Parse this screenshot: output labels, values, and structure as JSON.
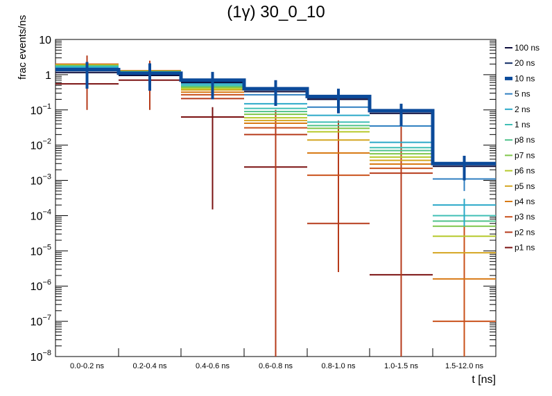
{
  "chart_data": {
    "type": "line",
    "title": "(1γ) 30_0_10",
    "xlabel": "t [ns]",
    "ylabel": "frac events/ns",
    "yscale": "log",
    "ylim": [
      1e-08,
      10
    ],
    "y_ticks": [
      {
        "base": "10",
        "exp": "−8",
        "value": 1e-08
      },
      {
        "base": "10",
        "exp": "−7",
        "value": 1e-07
      },
      {
        "base": "10",
        "exp": "−6",
        "value": 1e-06
      },
      {
        "base": "10",
        "exp": "−5",
        "value": 1e-05
      },
      {
        "base": "10",
        "exp": "−4",
        "value": 0.0001
      },
      {
        "base": "10",
        "exp": "−3",
        "value": 0.001
      },
      {
        "base": "10",
        "exp": "−2",
        "value": 0.01
      },
      {
        "base": "10",
        "exp": "−1",
        "value": 0.1
      },
      {
        "base": "1",
        "exp": "",
        "value": 1
      },
      {
        "base": "10",
        "exp": "",
        "value": 10
      }
    ],
    "categories": [
      "0.0-0.2 ns",
      "0.2-0.4 ns",
      "0.4-0.6 ns",
      "0.6-0.8 ns",
      "0.8-1.0 ns",
      "1.0-1.5 ns",
      "1.5-12.0 ns"
    ],
    "grid": false,
    "legend_position": "right",
    "series": [
      {
        "name": "100 ns",
        "color": "#0b0b3b",
        "width": 2,
        "values": [
          1.15,
          0.95,
          0.6,
          0.33,
          0.2,
          0.08,
          0.0025
        ],
        "err": [
          null,
          null,
          null,
          null,
          null,
          null,
          null
        ]
      },
      {
        "name": "20 ns",
        "color": "#0d2a63",
        "width": 2,
        "values": [
          1.3,
          1.05,
          0.65,
          0.37,
          0.22,
          0.09,
          0.0028
        ],
        "err": [
          null,
          null,
          null,
          null,
          null,
          null,
          null
        ]
      },
      {
        "name": "10 ns",
        "color": "#0b4a9a",
        "width": 5,
        "values": [
          1.4,
          1.1,
          0.7,
          0.4,
          0.24,
          0.095,
          0.003
        ],
        "err": [
          [
            0.4,
            2.3
          ],
          [
            0.35,
            2.1
          ],
          [
            0.2,
            1.2
          ],
          [
            0.13,
            0.7
          ],
          [
            0.08,
            0.4
          ],
          [
            0.035,
            0.15
          ],
          [
            0.001,
            0.005
          ]
        ]
      },
      {
        "name": "5 ns",
        "color": "#2f7fc1",
        "width": 2,
        "values": [
          1.5,
          1.1,
          0.6,
          0.27,
          0.12,
          0.035,
          0.0011
        ],
        "err": [
          null,
          null,
          null,
          null,
          null,
          null,
          [
            0.0005,
            0.0016
          ]
        ]
      },
      {
        "name": "2 ns",
        "color": "#2aa8c8",
        "width": 2,
        "values": [
          1.6,
          1.15,
          0.55,
          0.15,
          0.07,
          0.012,
          0.0002
        ],
        "err": [
          null,
          null,
          null,
          null,
          null,
          null,
          [
            5e-05,
            0.0003
          ]
        ]
      },
      {
        "name": "1 ns",
        "color": "#3fbfb5",
        "width": 2,
        "values": [
          1.7,
          1.2,
          0.5,
          0.11,
          0.045,
          0.0085,
          0.0001
        ],
        "err": [
          null,
          null,
          null,
          null,
          null,
          null,
          null
        ]
      },
      {
        "name": "p8 ns",
        "color": "#4fc28a",
        "width": 2,
        "values": [
          1.75,
          1.2,
          0.48,
          0.09,
          0.036,
          0.007,
          7e-05
        ],
        "err": [
          null,
          null,
          null,
          null,
          null,
          null,
          null
        ]
      },
      {
        "name": "p7 ns",
        "color": "#7fc64a",
        "width": 2,
        "values": [
          1.8,
          1.25,
          0.44,
          0.075,
          0.03,
          0.0057,
          5e-05
        ],
        "err": [
          null,
          null,
          null,
          null,
          null,
          null,
          null
        ]
      },
      {
        "name": "p6 ns",
        "color": "#b6c92a",
        "width": 2,
        "values": [
          1.85,
          1.25,
          0.4,
          0.06,
          0.024,
          0.0046,
          2.6e-05
        ],
        "err": [
          null,
          null,
          null,
          null,
          null,
          null,
          null
        ]
      },
      {
        "name": "p5 ns",
        "color": "#d4a520",
        "width": 2,
        "values": [
          1.9,
          1.25,
          0.37,
          0.05,
          0.014,
          0.0037,
          8.8e-06
        ],
        "err": [
          null,
          null,
          null,
          null,
          null,
          null,
          null
        ]
      },
      {
        "name": "p4 ns",
        "color": "#d87a14",
        "width": 2,
        "values": [
          1.95,
          1.3,
          0.32,
          0.042,
          0.006,
          0.0029,
          1.6e-06
        ],
        "err": [
          null,
          null,
          null,
          null,
          null,
          null,
          null
        ]
      },
      {
        "name": "p3 ns",
        "color": "#c9501a",
        "width": 2,
        "values": [
          2.0,
          1.3,
          0.27,
          0.031,
          0.0014,
          0.0022,
          1e-07
        ],
        "err": [
          null,
          null,
          null,
          null,
          null,
          null,
          [
            1e-08,
            0.0003
          ]
        ]
      },
      {
        "name": "p2 ns",
        "color": "#b63a1a",
        "width": 2,
        "values": [
          1.6,
          1.25,
          0.21,
          0.02,
          6e-05,
          0.0016,
          null
        ],
        "err": [
          [
            0.1,
            3.5
          ],
          [
            0.1,
            2.5
          ],
          null,
          [
            1e-08,
            0.1
          ],
          [
            2.5e-06,
            0.05
          ],
          [
            1e-08,
            0.1
          ],
          null
        ]
      },
      {
        "name": "p1 ns",
        "color": "#7a1010",
        "width": 2,
        "values": [
          0.55,
          0.7,
          0.063,
          0.0024,
          null,
          2.1e-06,
          null
        ],
        "err": [
          null,
          null,
          [
            0.00015,
            0.12
          ],
          [
            1e-08,
            0.06
          ],
          null,
          [
            1e-08,
            0.0001
          ],
          null
        ]
      }
    ]
  }
}
